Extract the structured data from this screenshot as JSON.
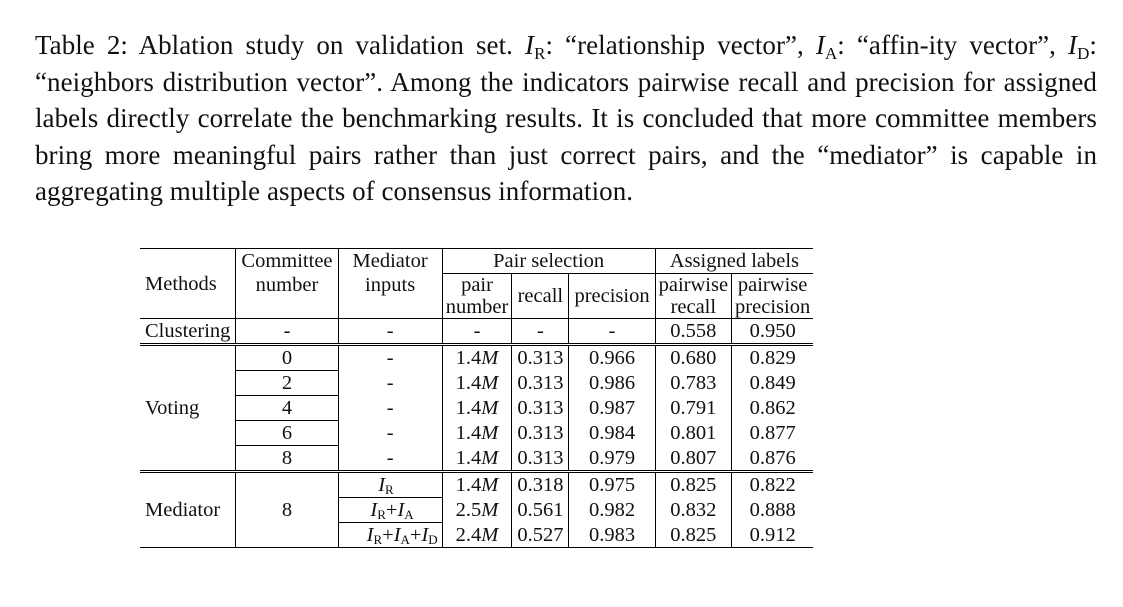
{
  "caption": {
    "label": "Table 2:",
    "text_1": "Ablation study on validation set.",
    "ir_sym": "I",
    "ir_sub": "R",
    "ir_desc": ": “relationship vector”,",
    "ia_sym": "I",
    "ia_sub": "A",
    "ia_desc": ": “affin-ity vector”,",
    "id_sym": "I",
    "id_sub": "D",
    "id_desc": ": “neighbors distribution vector”.",
    "text_2": "Among the indicators pairwise recall and precision for assigned labels directly correlate the benchmarking results. It is concluded that more committee members bring more meaningful pairs rather than just correct pairs, and the “mediator” is capable in aggregating multiple aspects of consensus information."
  },
  "table": {
    "headers": {
      "methods": "Methods",
      "committee_number_1": "Committee",
      "committee_number_2": "number",
      "mediator_inputs_1": "Mediator",
      "mediator_inputs_2": "inputs",
      "pair_selection": "Pair selection",
      "assigned_labels": "Assigned labels",
      "pair_number_1": "pair",
      "pair_number_2": "number",
      "recall": "recall",
      "precision": "precision",
      "pairwise_recall_1": "pairwise",
      "pairwise_recall_2": "recall",
      "pairwise_precision_1": "pairwise",
      "pairwise_precision_2": "precision"
    },
    "clustering": {
      "method": "Clustering",
      "committee": "-",
      "inputs": "-",
      "pair_number": "-",
      "recall": "-",
      "precision": "-",
      "pw_recall": "0.558",
      "pw_precision": "0.950"
    },
    "voting": {
      "method": "Voting",
      "rows": [
        {
          "committee": "0",
          "inputs": "-",
          "pair_number": "1.4",
          "unit": "M",
          "recall": "0.313",
          "precision": "0.966",
          "pw_recall": "0.680",
          "pw_precision": "0.829"
        },
        {
          "committee": "2",
          "inputs": "-",
          "pair_number": "1.4",
          "unit": "M",
          "recall": "0.313",
          "precision": "0.986",
          "pw_recall": "0.783",
          "pw_precision": "0.849"
        },
        {
          "committee": "4",
          "inputs": "-",
          "pair_number": "1.4",
          "unit": "M",
          "recall": "0.313",
          "precision": "0.987",
          "pw_recall": "0.791",
          "pw_precision": "0.862"
        },
        {
          "committee": "6",
          "inputs": "-",
          "pair_number": "1.4",
          "unit": "M",
          "recall": "0.313",
          "precision": "0.984",
          "pw_recall": "0.801",
          "pw_precision": "0.877"
        },
        {
          "committee": "8",
          "inputs": "-",
          "pair_number": "1.4",
          "unit": "M",
          "recall": "0.313",
          "precision": "0.979",
          "pw_recall": "0.807",
          "pw_precision": "0.876"
        }
      ]
    },
    "mediator": {
      "method": "Mediator",
      "committee": "8",
      "rows": [
        {
          "pair_number": "1.4",
          "unit": "M",
          "recall": "0.318",
          "precision": "0.975",
          "pw_recall": "0.825",
          "pw_precision": "0.822"
        },
        {
          "pair_number": "2.5",
          "unit": "M",
          "recall": "0.561",
          "precision": "0.982",
          "pw_recall": "0.832",
          "pw_precision": "0.888"
        },
        {
          "pair_number": "2.4",
          "unit": "M",
          "recall": "0.527",
          "precision": "0.983",
          "pw_recall": "0.825",
          "pw_precision": "0.912"
        }
      ],
      "inputs": {
        "I": "I",
        "R": "R",
        "A": "A",
        "D": "D",
        "plus": "+"
      }
    }
  }
}
